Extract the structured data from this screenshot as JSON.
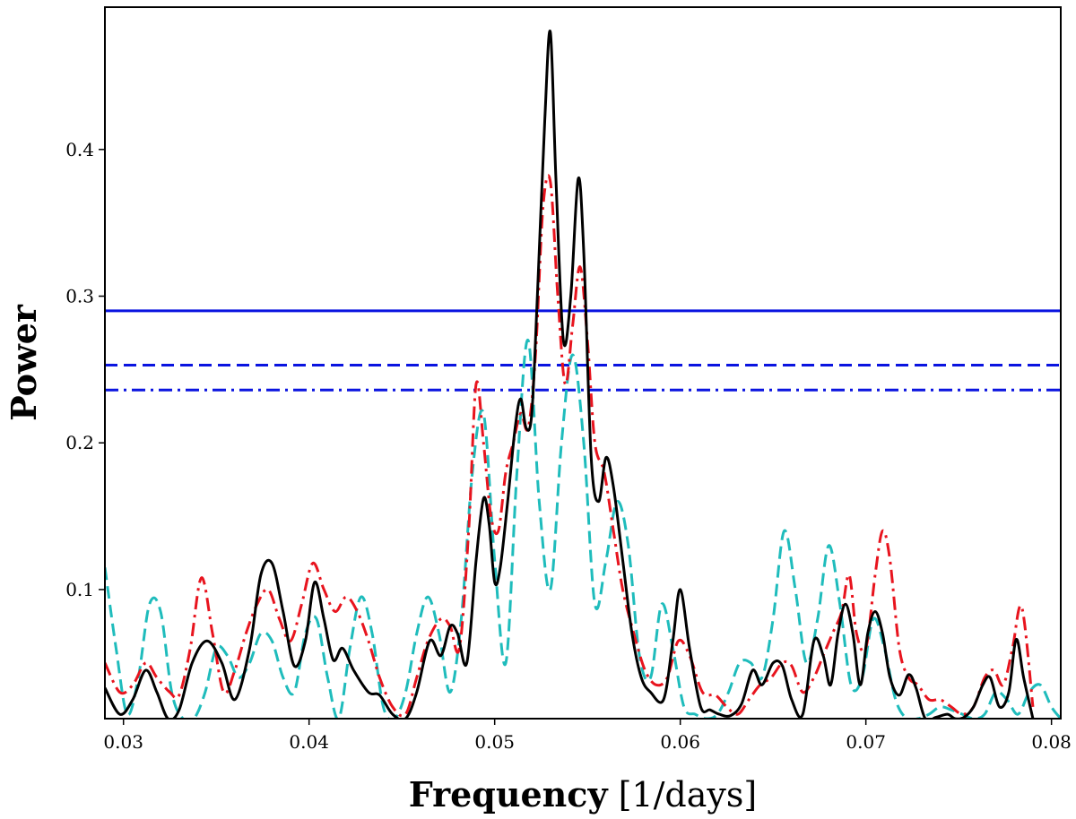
{
  "chart_data": {
    "type": "line",
    "title": "",
    "xlabel": {
      "main": "Frequency",
      "unit": " [1/days]"
    },
    "ylabel": "Power",
    "xlim": [
      0.029,
      0.0805
    ],
    "ylim": [
      0.012,
      0.497
    ],
    "xticks": [
      0.03,
      0.04,
      0.05,
      0.06,
      0.07,
      0.08
    ],
    "xtick_labels": [
      "0.03",
      "0.04",
      "0.05",
      "0.06",
      "0.07",
      "0.08"
    ],
    "yticks": [
      0.1,
      0.2,
      0.3,
      0.4
    ],
    "ytick_labels": [
      "0.1",
      "0.2",
      "0.3",
      "0.4"
    ],
    "grid": false,
    "series": [
      {
        "name": "periodogram-black",
        "style": "solid",
        "color": "#000000",
        "x": [
          0.029,
          0.0298,
          0.0305,
          0.0312,
          0.0318,
          0.0324,
          0.033,
          0.0337,
          0.0345,
          0.0353,
          0.036,
          0.0368,
          0.0374,
          0.038,
          0.0386,
          0.0392,
          0.0398,
          0.0403,
          0.0408,
          0.0413,
          0.0418,
          0.0424,
          0.0432,
          0.0438,
          0.0445,
          0.0452,
          0.0458,
          0.0465,
          0.0471,
          0.0476,
          0.048,
          0.0485,
          0.049,
          0.0494,
          0.0497,
          0.05,
          0.0503,
          0.0507,
          0.0511,
          0.0514,
          0.0517,
          0.052,
          0.0523,
          0.0527,
          0.053,
          0.0533,
          0.0537,
          0.0541,
          0.0545,
          0.0548,
          0.0552,
          0.0556,
          0.056,
          0.0564,
          0.0569,
          0.0574,
          0.0579,
          0.0584,
          0.0591,
          0.0596,
          0.06,
          0.0605,
          0.0611,
          0.0616,
          0.0621,
          0.0627,
          0.0633,
          0.0639,
          0.0644,
          0.065,
          0.0655,
          0.066,
          0.0666,
          0.0672,
          0.0677,
          0.0681,
          0.0685,
          0.0689,
          0.0693,
          0.0697,
          0.0701,
          0.0705,
          0.0709,
          0.0713,
          0.0718,
          0.0723,
          0.0727,
          0.0732,
          0.0738,
          0.0744,
          0.0748,
          0.0753,
          0.0758,
          0.0763,
          0.0767,
          0.0772,
          0.0777,
          0.0781,
          0.0785,
          0.079
        ],
        "y": [
          0.033,
          0.015,
          0.025,
          0.045,
          0.03,
          0.012,
          0.018,
          0.05,
          0.065,
          0.05,
          0.025,
          0.06,
          0.11,
          0.118,
          0.085,
          0.048,
          0.065,
          0.105,
          0.08,
          0.052,
          0.06,
          0.045,
          0.03,
          0.028,
          0.015,
          0.012,
          0.03,
          0.065,
          0.055,
          0.075,
          0.07,
          0.05,
          0.12,
          0.162,
          0.145,
          0.105,
          0.115,
          0.16,
          0.21,
          0.23,
          0.21,
          0.22,
          0.3,
          0.42,
          0.48,
          0.38,
          0.27,
          0.3,
          0.38,
          0.33,
          0.19,
          0.16,
          0.19,
          0.17,
          0.12,
          0.07,
          0.04,
          0.03,
          0.025,
          0.065,
          0.1,
          0.06,
          0.02,
          0.018,
          0.015,
          0.014,
          0.022,
          0.045,
          0.035,
          0.05,
          0.048,
          0.025,
          0.015,
          0.065,
          0.055,
          0.035,
          0.07,
          0.09,
          0.07,
          0.035,
          0.07,
          0.085,
          0.07,
          0.04,
          0.028,
          0.042,
          0.033,
          0.012,
          0.013,
          0.015,
          0.012,
          0.013,
          0.02,
          0.035,
          0.04,
          0.02,
          0.03,
          0.066,
          0.04,
          0.012
        ]
      },
      {
        "name": "periodogram-red",
        "style": "dashdot",
        "color": "#e8141e",
        "x": [
          0.029,
          0.0298,
          0.0305,
          0.0312,
          0.0318,
          0.0325,
          0.033,
          0.0336,
          0.0342,
          0.0348,
          0.0354,
          0.036,
          0.0366,
          0.0372,
          0.0378,
          0.0384,
          0.039,
          0.0396,
          0.0402,
          0.0408,
          0.0414,
          0.042,
          0.0426,
          0.0432,
          0.0438,
          0.0445,
          0.0452,
          0.0458,
          0.0464,
          0.0471,
          0.0476,
          0.0481,
          0.0486,
          0.049,
          0.0494,
          0.0498,
          0.0502,
          0.0506,
          0.051,
          0.0514,
          0.0518,
          0.0522,
          0.0526,
          0.053,
          0.0534,
          0.0538,
          0.0542,
          0.0546,
          0.055,
          0.0554,
          0.0559,
          0.0564,
          0.0569,
          0.0575,
          0.0581,
          0.0587,
          0.0593,
          0.0599,
          0.0605,
          0.0612,
          0.0619,
          0.0625,
          0.0631,
          0.0637,
          0.0643,
          0.0649,
          0.0655,
          0.066,
          0.0666,
          0.0672,
          0.0677,
          0.0682,
          0.0687,
          0.0691,
          0.0695,
          0.07,
          0.0705,
          0.0709,
          0.0713,
          0.0718,
          0.0723,
          0.0728,
          0.0734,
          0.074,
          0.0746,
          0.0752,
          0.0758,
          0.0764,
          0.0769,
          0.0774,
          0.0779,
          0.0784,
          0.079
        ],
        "y": [
          0.05,
          0.03,
          0.035,
          0.05,
          0.04,
          0.03,
          0.028,
          0.06,
          0.108,
          0.07,
          0.03,
          0.045,
          0.07,
          0.09,
          0.1,
          0.08,
          0.065,
          0.09,
          0.118,
          0.1,
          0.085,
          0.095,
          0.085,
          0.065,
          0.04,
          0.02,
          0.015,
          0.04,
          0.065,
          0.08,
          0.075,
          0.06,
          0.14,
          0.24,
          0.2,
          0.15,
          0.14,
          0.18,
          0.2,
          0.22,
          0.21,
          0.26,
          0.36,
          0.378,
          0.3,
          0.24,
          0.28,
          0.32,
          0.27,
          0.2,
          0.18,
          0.14,
          0.1,
          0.07,
          0.045,
          0.035,
          0.04,
          0.065,
          0.055,
          0.03,
          0.028,
          0.02,
          0.015,
          0.025,
          0.035,
          0.04,
          0.05,
          0.048,
          0.03,
          0.04,
          0.055,
          0.07,
          0.085,
          0.11,
          0.07,
          0.06,
          0.11,
          0.14,
          0.12,
          0.06,
          0.04,
          0.035,
          0.025,
          0.025,
          0.02,
          0.015,
          0.02,
          0.04,
          0.045,
          0.035,
          0.06,
          0.088,
          0.02
        ]
      },
      {
        "name": "periodogram-cyan",
        "style": "dashed",
        "color": "#1fbcbc",
        "x": [
          0.029,
          0.0296,
          0.0302,
          0.0308,
          0.0314,
          0.032,
          0.0326,
          0.0332,
          0.0338,
          0.0344,
          0.035,
          0.0356,
          0.0362,
          0.0368,
          0.0374,
          0.038,
          0.0386,
          0.0392,
          0.0398,
          0.0404,
          0.041,
          0.0416,
          0.0422,
          0.0428,
          0.0434,
          0.044,
          0.0446,
          0.0452,
          0.0458,
          0.0464,
          0.047,
          0.0476,
          0.0482,
          0.0488,
          0.0494,
          0.05,
          0.0506,
          0.0512,
          0.0518,
          0.0524,
          0.053,
          0.0536,
          0.0542,
          0.0548,
          0.0554,
          0.056,
          0.0566,
          0.0572,
          0.0578,
          0.0584,
          0.059,
          0.0596,
          0.0602,
          0.0608,
          0.0614,
          0.062,
          0.0626,
          0.0632,
          0.0638,
          0.0644,
          0.065,
          0.0656,
          0.0662,
          0.0668,
          0.0674,
          0.068,
          0.0686,
          0.0692,
          0.0698,
          0.0704,
          0.071,
          0.0716,
          0.0722,
          0.0728,
          0.0734,
          0.074,
          0.0746,
          0.0752,
          0.0758,
          0.0764,
          0.077,
          0.0776,
          0.0782,
          0.0788,
          0.0794,
          0.08,
          0.0805
        ],
        "y": [
          0.115,
          0.06,
          0.015,
          0.04,
          0.09,
          0.085,
          0.03,
          0.012,
          0.012,
          0.03,
          0.06,
          0.055,
          0.04,
          0.05,
          0.07,
          0.065,
          0.04,
          0.03,
          0.07,
          0.08,
          0.04,
          0.012,
          0.06,
          0.095,
          0.07,
          0.02,
          0.012,
          0.03,
          0.07,
          0.095,
          0.07,
          0.03,
          0.08,
          0.18,
          0.22,
          0.12,
          0.05,
          0.18,
          0.27,
          0.16,
          0.1,
          0.2,
          0.26,
          0.2,
          0.09,
          0.12,
          0.16,
          0.13,
          0.055,
          0.04,
          0.09,
          0.06,
          0.02,
          0.015,
          0.012,
          0.015,
          0.03,
          0.05,
          0.05,
          0.04,
          0.08,
          0.14,
          0.1,
          0.05,
          0.08,
          0.13,
          0.09,
          0.035,
          0.04,
          0.08,
          0.06,
          0.025,
          0.012,
          0.012,
          0.015,
          0.02,
          0.018,
          0.015,
          0.012,
          0.015,
          0.03,
          0.025,
          0.015,
          0.03,
          0.035,
          0.02,
          0.012
        ]
      },
      {
        "name": "threshold-solid",
        "style": "solid",
        "color": "#0a14e0",
        "x": [
          0.029,
          0.0805
        ],
        "y": [
          0.29,
          0.29
        ]
      },
      {
        "name": "threshold-dashed",
        "style": "dashed",
        "color": "#0a14e0",
        "x": [
          0.029,
          0.0805
        ],
        "y": [
          0.253,
          0.253
        ]
      },
      {
        "name": "threshold-dashdot",
        "style": "dashdot",
        "color": "#0a14e0",
        "x": [
          0.029,
          0.0805
        ],
        "y": [
          0.236,
          0.236
        ]
      }
    ]
  }
}
